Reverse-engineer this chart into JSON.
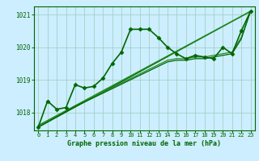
{
  "background_color": "#cceeff",
  "grid_color": "#99ccbb",
  "line_color_dark": "#006600",
  "line_color_mid": "#228B22",
  "xlabel": "Graphe pression niveau de la mer (hPa)",
  "xlabel_color": "#006600",
  "tick_color": "#006600",
  "xlim": [
    -0.5,
    23.5
  ],
  "ylim": [
    1017.45,
    1021.25
  ],
  "yticks": [
    1018,
    1019,
    1020,
    1021
  ],
  "xticks": [
    0,
    1,
    2,
    3,
    4,
    5,
    6,
    7,
    8,
    9,
    10,
    11,
    12,
    13,
    14,
    15,
    16,
    17,
    18,
    19,
    20,
    21,
    22,
    23
  ],
  "series": [
    {
      "x": [
        0,
        1,
        2,
        3,
        4,
        5,
        6,
        7,
        8,
        9,
        10,
        11,
        12,
        13,
        14,
        15,
        16,
        17,
        18,
        19,
        20,
        21,
        22,
        23
      ],
      "y": [
        1017.55,
        1018.35,
        1018.1,
        1018.15,
        1018.85,
        1018.75,
        1018.8,
        1019.05,
        1019.5,
        1019.85,
        1020.55,
        1020.55,
        1020.55,
        1020.3,
        1020.0,
        1019.8,
        1019.65,
        1019.75,
        1019.7,
        1019.65,
        1020.0,
        1019.8,
        1020.5,
        1021.1
      ],
      "marker": "D",
      "markersize": 2.5,
      "linewidth": 1.2,
      "color": "#006600",
      "zorder": 5
    },
    {
      "x": [
        0,
        23
      ],
      "y": [
        1017.55,
        1021.1
      ],
      "marker": null,
      "markersize": 0,
      "linewidth": 1.0,
      "color": "#006600",
      "zorder": 3
    },
    {
      "x": [
        0,
        23
      ],
      "y": [
        1017.6,
        1021.1
      ],
      "marker": null,
      "markersize": 0,
      "linewidth": 1.0,
      "color": "#228B22",
      "zorder": 3
    },
    {
      "x": [
        0,
        4,
        14,
        15,
        16,
        17,
        18,
        19,
        20,
        21,
        22,
        23
      ],
      "y": [
        1017.6,
        1018.2,
        1019.6,
        1019.65,
        1019.65,
        1019.7,
        1019.7,
        1019.75,
        1019.8,
        1019.85,
        1020.3,
        1021.1
      ],
      "marker": null,
      "markersize": 0,
      "linewidth": 0.9,
      "color": "#228B22",
      "zorder": 3
    },
    {
      "x": [
        0,
        4,
        14,
        15,
        16,
        17,
        18,
        19,
        20,
        21,
        22,
        23
      ],
      "y": [
        1017.55,
        1018.18,
        1019.55,
        1019.6,
        1019.6,
        1019.65,
        1019.65,
        1019.7,
        1019.75,
        1019.8,
        1020.25,
        1021.1
      ],
      "marker": null,
      "markersize": 0,
      "linewidth": 0.9,
      "color": "#006600",
      "zorder": 3
    }
  ]
}
